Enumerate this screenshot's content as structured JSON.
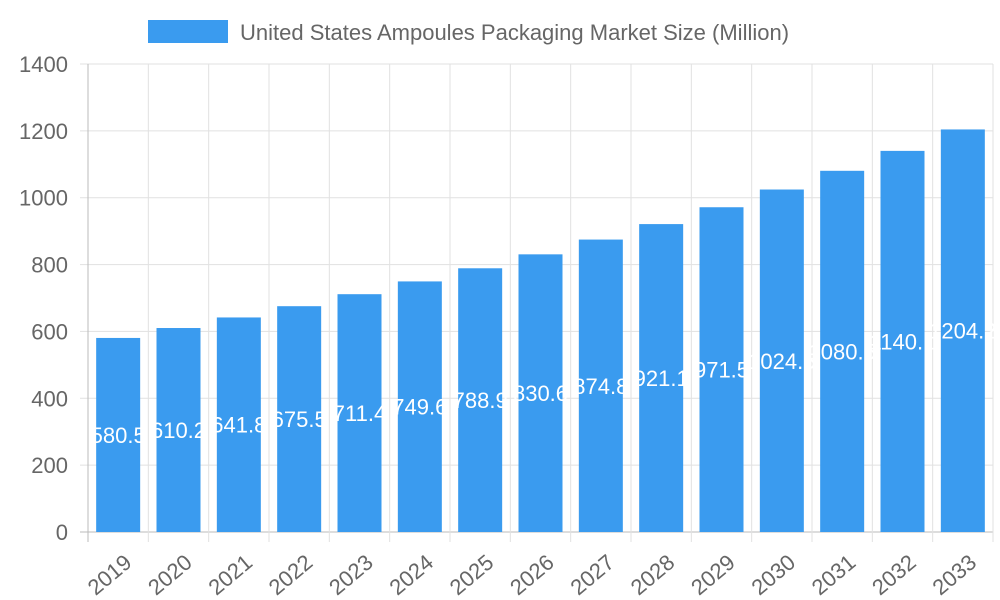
{
  "chart_data": {
    "type": "bar",
    "title": "",
    "xlabel": "",
    "ylabel": "",
    "legend": {
      "position": "top",
      "entries": [
        "United States Ampoules Packaging Market Size (Million)"
      ]
    },
    "categories": [
      "2019",
      "2020",
      "2021",
      "2022",
      "2023",
      "2024",
      "2025",
      "2026",
      "2027",
      "2028",
      "2029",
      "2030",
      "2031",
      "2032",
      "2033"
    ],
    "series": [
      {
        "name": "United States Ampoules Packaging Market Size (Million)",
        "values": [
          580.5,
          610.2,
          641.8,
          675.5,
          711.4,
          749.6,
          788.9,
          830.6,
          874.8,
          921.1,
          971.5,
          1024.5,
          1080.5,
          1140.1,
          1204.2
        ],
        "color": "#3a9bef"
      }
    ],
    "data_labels": [
      "580.5",
      "610.2",
      "641.8",
      "675.5",
      "711.4",
      "749.6",
      "788.9",
      "830.6",
      "874.8",
      "921.1",
      "971.5",
      "1024.5",
      "1080.5",
      "1140.1",
      "1204.2"
    ],
    "ylim": [
      0,
      1400
    ],
    "yticks": [
      "0",
      "200",
      "400",
      "600",
      "800",
      "1000",
      "1200",
      "1400"
    ],
    "grid": true
  }
}
